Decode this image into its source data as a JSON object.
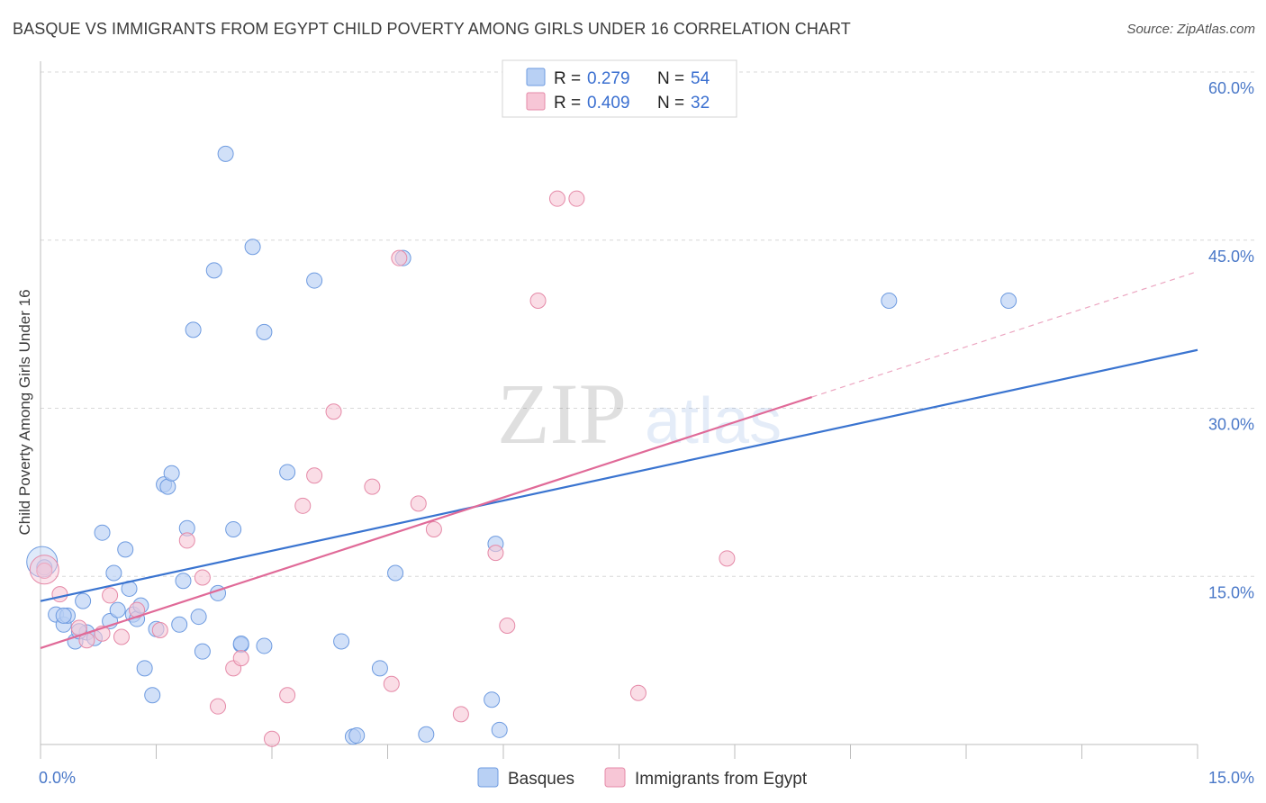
{
  "title": "BASQUE VS IMMIGRANTS FROM EGYPT CHILD POVERTY AMONG GIRLS UNDER 16 CORRELATION CHART",
  "source": "Source: ZipAtlas.com",
  "watermark": {
    "zip": "ZIP",
    "atlas": "atlas"
  },
  "colors": {
    "blue_fill": "#b8d0f4",
    "blue_stroke": "#6e9be0",
    "blue_line": "#3a74d0",
    "pink_fill": "#f7c6d6",
    "pink_stroke": "#e58aa8",
    "pink_line": "#e06a98",
    "grid": "#d8d8d8",
    "tick_text": "#4a78c8"
  },
  "legend": {
    "rows": [
      {
        "r_label": "R =",
        "r_value": "0.279",
        "n_label": "N =",
        "n_value": "54"
      },
      {
        "r_label": "R =",
        "r_value": "0.409",
        "n_label": "N =",
        "n_value": "32"
      }
    ]
  },
  "bottom_legend": [
    "Basques",
    "Immigrants from Egypt"
  ],
  "chart_data": {
    "type": "scatter",
    "title": "BASQUE VS IMMIGRANTS FROM EGYPT CHILD POVERTY AMONG GIRLS UNDER 16 CORRELATION CHART",
    "xlabel": "",
    "ylabel": "Child Poverty Among Girls Under 16",
    "xlim": [
      0,
      15
    ],
    "ylim": [
      0,
      60
    ],
    "x_tick_labels": [
      "0.0%",
      "15.0%"
    ],
    "y_ticks": [
      15,
      30,
      45,
      60
    ],
    "y_tick_labels": [
      "15.0%",
      "30.0%",
      "45.0%",
      "60.0%"
    ],
    "grid": true,
    "legend_position": "top-center",
    "series": [
      {
        "name": "Basques",
        "R": 0.279,
        "N": 54,
        "trend": {
          "x": [
            0,
            15
          ],
          "y": [
            12.8,
            35.2
          ]
        },
        "points": [
          [
            0.05,
            15.8
          ],
          [
            0.2,
            11.6
          ],
          [
            0.3,
            10.7
          ],
          [
            0.35,
            11.5
          ],
          [
            0.45,
            9.2
          ],
          [
            0.55,
            12.8
          ],
          [
            0.6,
            10.0
          ],
          [
            0.7,
            9.5
          ],
          [
            0.8,
            18.9
          ],
          [
            0.95,
            15.3
          ],
          [
            1.1,
            17.4
          ],
          [
            1.15,
            13.9
          ],
          [
            1.2,
            11.6
          ],
          [
            1.25,
            11.2
          ],
          [
            1.35,
            6.8
          ],
          [
            1.45,
            4.4
          ],
          [
            1.5,
            10.3
          ],
          [
            1.6,
            23.2
          ],
          [
            1.65,
            23.0
          ],
          [
            1.7,
            24.2
          ],
          [
            1.8,
            10.7
          ],
          [
            1.85,
            14.6
          ],
          [
            1.9,
            19.3
          ],
          [
            1.98,
            37.0
          ],
          [
            2.05,
            11.4
          ],
          [
            2.1,
            8.3
          ],
          [
            2.25,
            42.3
          ],
          [
            2.3,
            13.5
          ],
          [
            2.4,
            52.7
          ],
          [
            2.5,
            19.2
          ],
          [
            2.6,
            8.9
          ],
          [
            2.6,
            9.0
          ],
          [
            2.75,
            44.4
          ],
          [
            2.9,
            36.8
          ],
          [
            2.9,
            8.8
          ],
          [
            3.2,
            24.3
          ],
          [
            3.55,
            41.4
          ],
          [
            3.9,
            9.2
          ],
          [
            4.05,
            0.7
          ],
          [
            4.1,
            0.8
          ],
          [
            4.4,
            6.8
          ],
          [
            4.6,
            15.3
          ],
          [
            4.7,
            43.4
          ],
          [
            5.0,
            0.9
          ],
          [
            5.85,
            4.0
          ],
          [
            5.9,
            17.9
          ],
          [
            5.95,
            1.3
          ],
          [
            11.0,
            39.6
          ],
          [
            12.55,
            39.6
          ],
          [
            0.3,
            11.5
          ],
          [
            0.9,
            11.0
          ],
          [
            1.0,
            12.0
          ],
          [
            1.3,
            12.4
          ],
          [
            0.5,
            10.1
          ]
        ]
      },
      {
        "name": "Immigrants from Egypt",
        "R": 0.409,
        "N": 32,
        "trend": {
          "x": [
            0,
            10
          ],
          "y": [
            8.6,
            31.0
          ]
        },
        "trend_dashed": {
          "x": [
            10,
            15
          ],
          "y": [
            31.0,
            42.2
          ]
        },
        "points": [
          [
            0.05,
            15.5
          ],
          [
            0.25,
            13.4
          ],
          [
            0.5,
            10.4
          ],
          [
            0.6,
            9.3
          ],
          [
            0.8,
            9.9
          ],
          [
            0.9,
            13.3
          ],
          [
            1.05,
            9.6
          ],
          [
            1.25,
            12.0
          ],
          [
            1.55,
            10.2
          ],
          [
            1.9,
            18.2
          ],
          [
            2.1,
            14.9
          ],
          [
            2.3,
            3.4
          ],
          [
            2.5,
            6.8
          ],
          [
            2.6,
            7.7
          ],
          [
            3.0,
            0.5
          ],
          [
            3.2,
            4.4
          ],
          [
            3.4,
            21.3
          ],
          [
            3.55,
            24.0
          ],
          [
            3.8,
            29.7
          ],
          [
            4.3,
            23.0
          ],
          [
            4.55,
            5.4
          ],
          [
            4.65,
            43.4
          ],
          [
            4.9,
            21.5
          ],
          [
            5.1,
            19.2
          ],
          [
            5.45,
            2.7
          ],
          [
            5.9,
            17.1
          ],
          [
            6.05,
            10.6
          ],
          [
            6.45,
            39.6
          ],
          [
            6.7,
            48.7
          ],
          [
            6.95,
            48.7
          ],
          [
            7.75,
            4.6
          ],
          [
            8.9,
            16.6
          ]
        ]
      }
    ]
  }
}
